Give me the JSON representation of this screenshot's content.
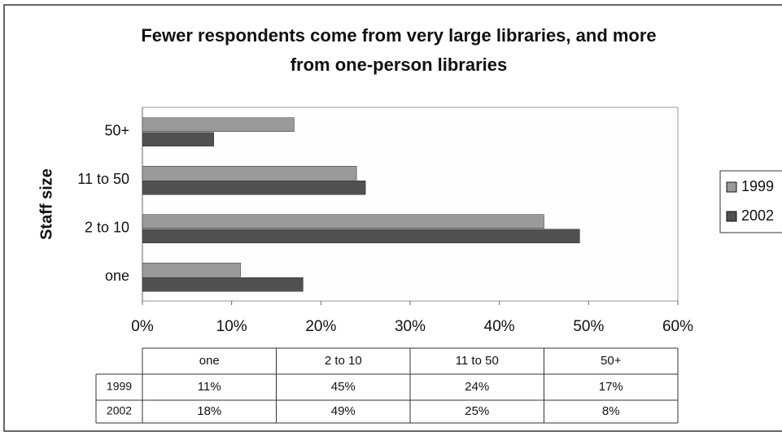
{
  "chart_data": {
    "type": "bar",
    "orientation": "horizontal",
    "title": "Fewer respondents come from very large libraries, and more from one-person libraries",
    "ylabel": "Staff size",
    "categories": [
      "one",
      "2 to 10",
      "11 to 50",
      "50+"
    ],
    "series": [
      {
        "name": "1999",
        "color": "#9a9a9a",
        "values": [
          11,
          45,
          24,
          17
        ],
        "value_labels": [
          "11%",
          "45%",
          "24%",
          "17%"
        ]
      },
      {
        "name": "2002",
        "color": "#505050",
        "values": [
          18,
          49,
          25,
          8
        ],
        "value_labels": [
          "18%",
          "49%",
          "25%",
          "8%"
        ]
      }
    ],
    "xlim": [
      0,
      60
    ],
    "xticks": [
      {
        "value": 0,
        "label": "0%"
      },
      {
        "value": 10,
        "label": "10%"
      },
      {
        "value": 20,
        "label": "20%"
      },
      {
        "value": 30,
        "label": "30%"
      },
      {
        "value": 40,
        "label": "40%"
      },
      {
        "value": 50,
        "label": "50%"
      },
      {
        "value": 60,
        "label": "60%"
      }
    ],
    "legend": "right",
    "data_table": true
  }
}
